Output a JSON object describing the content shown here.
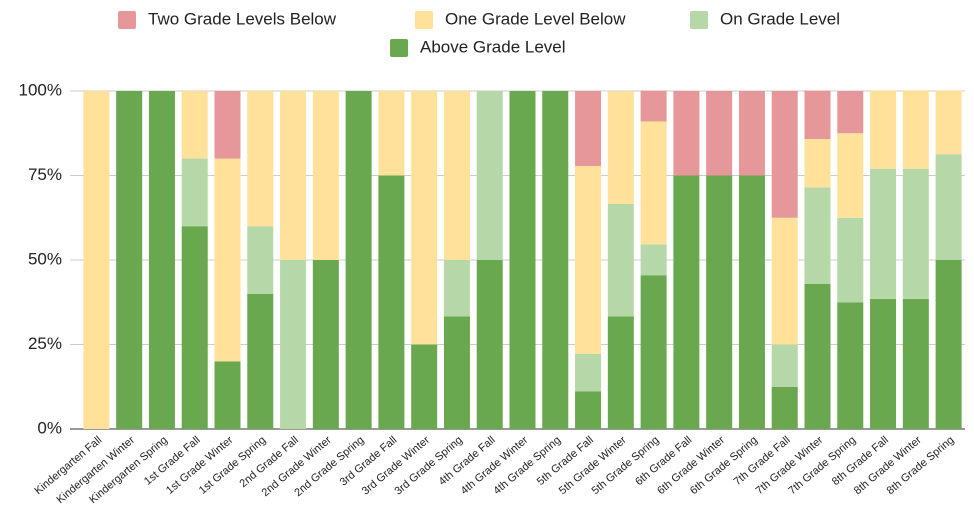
{
  "chart_data": {
    "type": "stacked_bar",
    "categories": [
      "Kindergarten Fall",
      "Kindergarten Winter",
      "Kindergarten Spring",
      "1st Grade Fall",
      "1st Grade Winter",
      "1st Grade Spring",
      "2nd Grade Fall",
      "2nd Grade Winter",
      "2nd Grade Spring",
      "3rd Grade Fall",
      "3rd Grade Winter",
      "3rd Grade Spring",
      "4th Grade Fall",
      "4th Grade Winter",
      "4th Grade Spring",
      "5th Grade Fall",
      "5th Grade Winter",
      "5th Grade Spring",
      "6th Grade Fall",
      "6th Grade Winter",
      "6th Grade Spring",
      "7th Grade Fall",
      "7th Grade Winter",
      "7th Grade Spring",
      "8th Grade Fall",
      "8th Grade Winter",
      "8th Grade Spring"
    ],
    "series": [
      {
        "name": "Above Grade Level",
        "color": "#6aa84f",
        "values": [
          0,
          100,
          100,
          60,
          20,
          40,
          0,
          50,
          100,
          75,
          25,
          33.3,
          50,
          100,
          100,
          11.1,
          33.3,
          45.5,
          75,
          75,
          75,
          12.5,
          42.9,
          37.5,
          38.5,
          38.5,
          50
        ]
      },
      {
        "name": "On Grade Level",
        "color": "#b6d7a8",
        "values": [
          0,
          0,
          0,
          20,
          0,
          20,
          50,
          0,
          0,
          0,
          0,
          16.7,
          50,
          0,
          0,
          11.1,
          33.3,
          9.1,
          0,
          0,
          0,
          12.5,
          28.6,
          25,
          38.5,
          38.5,
          31.3
        ]
      },
      {
        "name": "One Grade Level Below",
        "color": "#ffe199",
        "values": [
          100,
          0,
          0,
          20,
          60,
          40,
          50,
          50,
          0,
          25,
          75,
          50,
          0,
          0,
          0,
          55.6,
          33.3,
          36.4,
          0,
          0,
          0,
          37.5,
          14.3,
          25,
          23.1,
          23.1,
          18.8
        ]
      },
      {
        "name": "Two Grade Levels Below",
        "color": "#e6979a",
        "values": [
          0,
          0,
          0,
          0,
          20,
          0,
          0,
          0,
          0,
          0,
          0,
          0,
          0,
          0,
          0,
          22.2,
          0,
          9.1,
          25,
          25,
          25,
          37.5,
          14.3,
          12.5,
          0,
          0,
          0
        ]
      }
    ],
    "ylim": [
      0,
      100
    ],
    "yticks": [
      {
        "value": 0,
        "label": "0%"
      },
      {
        "value": 25,
        "label": "25%"
      },
      {
        "value": 50,
        "label": "50%"
      },
      {
        "value": 75,
        "label": "75%"
      },
      {
        "value": 100,
        "label": "100%"
      }
    ],
    "grid": true,
    "legend": "top"
  }
}
